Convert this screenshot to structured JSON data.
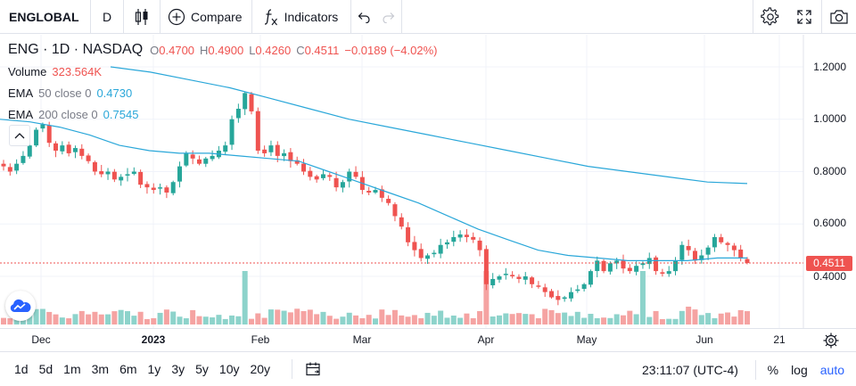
{
  "toolbar": {
    "symbol": "ENGLOBAL",
    "interval": "D",
    "compare_label": "Compare",
    "indicators_label": "Indicators",
    "icons": [
      "candles-icon",
      "plus-circle-icon",
      "fx-icon",
      "undo-icon",
      "redo-icon",
      "settings-icon",
      "fullscreen-icon",
      "camera-icon"
    ]
  },
  "legend": {
    "title": "ENG · 1D · NASDAQ",
    "ohlc": [
      {
        "k": "O",
        "v": "0.4700"
      },
      {
        "k": "H",
        "v": "0.4900"
      },
      {
        "k": "L",
        "v": "0.4260"
      },
      {
        "k": "C",
        "v": "0.4511"
      }
    ],
    "change": "−0.0189 (−4.02%)",
    "volume_label": "Volume",
    "volume_value": "323.564K",
    "ema50_label": "EMA",
    "ema50_params": "50 close 0",
    "ema50_value": "0.4730",
    "ema200_label": "EMA",
    "ema200_params": "200 close 0",
    "ema200_value": "0.7545"
  },
  "colors": {
    "up": "#26a69a",
    "down": "#ef5350",
    "up_volume": "#8dd3cb",
    "down_volume": "#f5a3a2",
    "ema": "#2aa7d9",
    "grid": "#f0f3fa",
    "accent": "#2962ff"
  },
  "price_scale": {
    "ticks": [
      "1.2000",
      "1.0000",
      "0.8000",
      "0.6000",
      "0.4000"
    ],
    "last_price": "0.4511"
  },
  "time_axis": {
    "ticks": [
      {
        "label": "Dec",
        "bold": false
      },
      {
        "label": "2023",
        "bold": true
      },
      {
        "label": "Feb",
        "bold": false
      },
      {
        "label": "Mar",
        "bold": false
      },
      {
        "label": "Apr",
        "bold": false
      },
      {
        "label": "May",
        "bold": false
      },
      {
        "label": "Jun",
        "bold": false
      },
      {
        "label": "21",
        "bold": false
      }
    ]
  },
  "bottom": {
    "ranges": [
      "1d",
      "5d",
      "1m",
      "3m",
      "6m",
      "1y",
      "3y",
      "5y",
      "10y",
      "20y"
    ],
    "clock": "23:11:07 (UTC-4)",
    "percent": "%",
    "log": "log",
    "auto": "auto"
  },
  "chart_data": {
    "type": "candlestick",
    "symbol": "ENG",
    "interval": "1D",
    "exchange": "NASDAQ",
    "ylim": [
      0.25,
      1.3
    ],
    "ohlc_close_series": [
      0.82,
      0.8,
      0.83,
      0.86,
      0.9,
      0.96,
      0.98,
      0.91,
      0.88,
      0.9,
      0.87,
      0.89,
      0.86,
      0.84,
      0.8,
      0.79,
      0.8,
      0.77,
      0.78,
      0.79,
      0.8,
      0.75,
      0.74,
      0.73,
      0.74,
      0.72,
      0.76,
      0.82,
      0.87,
      0.85,
      0.83,
      0.85,
      0.86,
      0.88,
      0.9,
      1.0,
      1.04,
      1.1,
      1.03,
      0.88,
      0.87,
      0.9,
      0.86,
      0.87,
      0.84,
      0.83,
      0.8,
      0.78,
      0.77,
      0.79,
      0.78,
      0.74,
      0.76,
      0.8,
      0.78,
      0.73,
      0.72,
      0.73,
      0.7,
      0.68,
      0.63,
      0.59,
      0.53,
      0.5,
      0.47,
      0.48,
      0.49,
      0.52,
      0.53,
      0.55,
      0.56,
      0.55,
      0.54,
      0.5,
      0.37,
      0.39,
      0.4,
      0.41,
      0.4,
      0.39,
      0.4,
      0.37,
      0.36,
      0.34,
      0.32,
      0.31,
      0.32,
      0.34,
      0.35,
      0.37,
      0.42,
      0.46,
      0.42,
      0.45,
      0.46,
      0.43,
      0.42,
      0.44,
      0.45,
      0.47,
      0.42,
      0.41,
      0.42,
      0.46,
      0.52,
      0.5,
      0.46,
      0.48,
      0.51,
      0.55,
      0.53,
      0.52,
      0.5,
      0.47,
      0.4511
    ],
    "ema50": [
      1.0,
      0.99,
      0.97,
      0.94,
      0.9,
      0.88,
      0.87,
      0.87,
      0.86,
      0.85,
      0.84,
      0.8,
      0.76,
      0.72,
      0.68,
      0.63,
      0.58,
      0.54,
      0.5,
      0.48,
      0.47,
      0.46,
      0.46,
      0.46,
      0.47,
      0.47
    ],
    "ema200": [
      1.2,
      1.18,
      1.15,
      1.12,
      1.08,
      1.04,
      1.0,
      0.97,
      0.94,
      0.91,
      0.88,
      0.85,
      0.82,
      0.8,
      0.78,
      0.76,
      0.7545
    ]
  }
}
